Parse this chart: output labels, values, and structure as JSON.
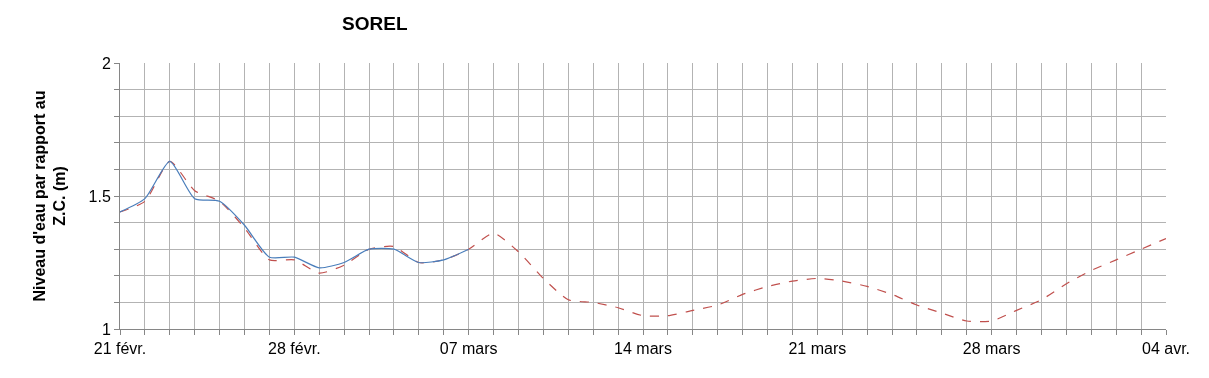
{
  "chart_data": {
    "type": "line",
    "title": "SOREL",
    "ylabel": "Niveau d'eau par rapport au Z.C. (m)",
    "xlim": [
      "--02-21",
      "--04-04"
    ],
    "ylim": [
      1,
      2
    ],
    "yticks": [
      1,
      {
        "value": 1.1,
        "label": null
      },
      {
        "value": 1.2,
        "label": null
      },
      {
        "value": 1.3,
        "label": null
      },
      {
        "value": 1.4,
        "label": null
      },
      1.5,
      {
        "value": 1.6,
        "label": null
      },
      {
        "value": 1.7,
        "label": null
      },
      {
        "value": 1.8,
        "label": null
      },
      {
        "value": 1.9,
        "label": null
      },
      2
    ],
    "xticks": [
      {
        "value": "--02-21",
        "label": "21 févr."
      },
      {
        "value": "--02-22",
        "label": null
      },
      {
        "value": "--02-23",
        "label": null
      },
      {
        "value": "--02-24",
        "label": null
      },
      {
        "value": "--02-25",
        "label": null
      },
      {
        "value": "--02-26",
        "label": null
      },
      {
        "value": "--02-27",
        "label": null
      },
      {
        "value": "--02-28",
        "label": "28 févr."
      },
      {
        "value": "--03-01",
        "label": null
      },
      {
        "value": "--03-02",
        "label": null
      },
      {
        "value": "--03-03",
        "label": null
      },
      {
        "value": "--03-04",
        "label": null
      },
      {
        "value": "--03-05",
        "label": null
      },
      {
        "value": "--03-06",
        "label": null
      },
      {
        "value": "--03-07",
        "label": "07 mars"
      },
      {
        "value": "--03-08",
        "label": null
      },
      {
        "value": "--03-09",
        "label": null
      },
      {
        "value": "--03-10",
        "label": null
      },
      {
        "value": "--03-11",
        "label": null
      },
      {
        "value": "--03-12",
        "label": null
      },
      {
        "value": "--03-13",
        "label": null
      },
      {
        "value": "--03-14",
        "label": "14 mars"
      },
      {
        "value": "--03-15",
        "label": null
      },
      {
        "value": "--03-16",
        "label": null
      },
      {
        "value": "--03-17",
        "label": null
      },
      {
        "value": "--03-18",
        "label": null
      },
      {
        "value": "--03-19",
        "label": null
      },
      {
        "value": "--03-20",
        "label": null
      },
      {
        "value": "--03-21",
        "label": "21 mars"
      },
      {
        "value": "--03-22",
        "label": null
      },
      {
        "value": "--03-23",
        "label": null
      },
      {
        "value": "--03-24",
        "label": null
      },
      {
        "value": "--03-25",
        "label": null
      },
      {
        "value": "--03-26",
        "label": null
      },
      {
        "value": "--03-27",
        "label": null
      },
      {
        "value": "--03-28",
        "label": "28 mars"
      },
      {
        "value": "--03-29",
        "label": null
      },
      {
        "value": "--03-30",
        "label": null
      },
      {
        "value": "--03-31",
        "label": null
      },
      {
        "value": "--04-01",
        "label": null
      },
      {
        "value": "--04-02",
        "label": null
      },
      {
        "value": "--04-03",
        "label": null
      },
      {
        "value": "--04-04",
        "label": "04 avr."
      }
    ],
    "grid": true,
    "marker": "none",
    "series": [
      {
        "color": "#c0504d",
        "line_style": "dashed",
        "x": [
          "--02-21",
          "--02-22",
          "--02-23",
          "--02-24",
          "--02-25",
          "--02-26",
          "--02-27",
          "--02-28",
          "--03-01",
          "--03-02",
          "--03-03",
          "--03-04",
          "--03-05",
          "--03-06",
          "--03-07",
          "--03-08",
          "--03-09",
          "--03-10",
          "--03-11",
          "--03-12",
          "--03-13",
          "--03-14",
          "--03-15",
          "--03-16",
          "--03-17",
          "--03-18",
          "--03-19",
          "--03-20",
          "--03-21",
          "--03-22",
          "--03-23",
          "--03-24",
          "--03-25",
          "--03-26",
          "--03-27",
          "--03-28",
          "--03-29",
          "--03-30",
          "--03-31",
          "--04-01",
          "--04-02",
          "--04-03",
          "--04-04"
        ],
        "values": [
          1.44,
          1.48,
          1.63,
          1.52,
          1.48,
          1.38,
          1.26,
          1.26,
          1.21,
          1.24,
          1.3,
          1.31,
          1.25,
          1.26,
          1.3,
          1.36,
          1.29,
          1.19,
          1.11,
          1.1,
          1.08,
          1.05,
          1.05,
          1.07,
          1.09,
          1.13,
          1.16,
          1.18,
          1.19,
          1.18,
          1.16,
          1.13,
          1.09,
          1.06,
          1.03,
          1.03,
          1.07,
          1.11,
          1.17,
          1.22,
          1.26,
          1.3,
          1.34
        ]
      },
      {
        "color": "#4a7ebb",
        "line_style": "solid",
        "x": [
          "--02-21",
          "--02-22",
          "--02-23",
          "--02-24",
          "--02-25",
          "--02-26",
          "--02-27",
          "--02-28",
          "--03-01",
          "--03-02",
          "--03-03",
          "--03-04",
          "--03-05",
          "--03-06",
          "--03-07"
        ],
        "values": [
          1.44,
          1.49,
          1.63,
          1.49,
          1.48,
          1.39,
          1.27,
          1.27,
          1.23,
          1.25,
          1.3,
          1.3,
          1.25,
          1.26,
          1.3
        ]
      }
    ]
  }
}
